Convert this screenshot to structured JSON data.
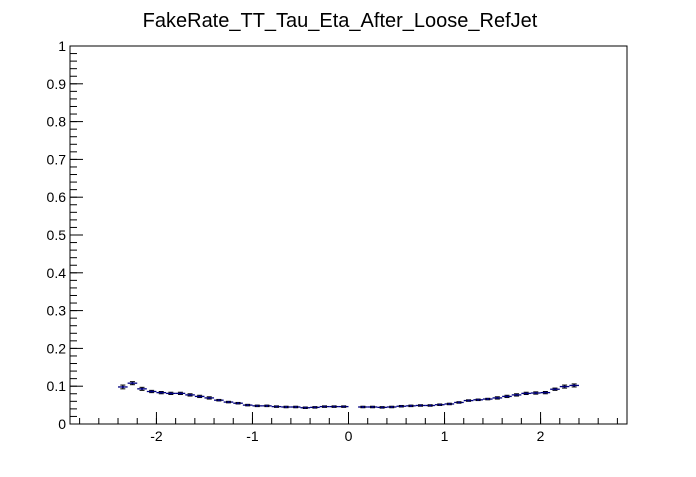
{
  "chart_data": {
    "type": "scatter",
    "title": "FakeRate_TT_Tau_Eta_After_Loose_RefJet",
    "xlabel": "",
    "ylabel": "",
    "xlim": [
      -2.9,
      2.9
    ],
    "ylim": [
      0,
      1
    ],
    "x_ticks": [
      -2,
      -1,
      0,
      1,
      2
    ],
    "y_ticks": [
      0,
      0.1,
      0.2,
      0.3,
      0.4,
      0.5,
      0.6,
      0.7,
      0.8,
      0.9,
      1
    ],
    "x_tick_labels": [
      "-2",
      "-1",
      "0",
      "1",
      "2"
    ],
    "y_tick_labels": [
      "0",
      "0.1",
      "0.2",
      "0.3",
      "0.4",
      "0.5",
      "0.6",
      "0.7",
      "0.8",
      "0.9",
      "1"
    ],
    "grid": false,
    "marker_color": "#000080",
    "bin_width": 0.1,
    "x": [
      -2.35,
      -2.25,
      -2.15,
      -2.05,
      -1.95,
      -1.85,
      -1.75,
      -1.65,
      -1.55,
      -1.45,
      -1.35,
      -1.25,
      -1.15,
      -1.05,
      -0.95,
      -0.85,
      -0.75,
      -0.65,
      -0.55,
      -0.45,
      -0.35,
      -0.25,
      -0.15,
      -0.05,
      0.15,
      0.25,
      0.35,
      0.45,
      0.55,
      0.65,
      0.75,
      0.85,
      0.95,
      1.05,
      1.15,
      1.25,
      1.35,
      1.45,
      1.55,
      1.65,
      1.75,
      1.85,
      1.95,
      2.05,
      2.15,
      2.25,
      2.35
    ],
    "y": [
      0.098,
      0.108,
      0.093,
      0.086,
      0.083,
      0.081,
      0.081,
      0.077,
      0.073,
      0.069,
      0.063,
      0.058,
      0.055,
      0.05,
      0.048,
      0.048,
      0.046,
      0.045,
      0.045,
      0.043,
      0.044,
      0.046,
      0.046,
      0.046,
      0.045,
      0.045,
      0.044,
      0.045,
      0.047,
      0.048,
      0.049,
      0.049,
      0.051,
      0.053,
      0.057,
      0.062,
      0.064,
      0.066,
      0.069,
      0.073,
      0.077,
      0.081,
      0.082,
      0.083,
      0.092,
      0.099,
      0.102
    ],
    "y_err": [
      0.005,
      0.004,
      0.004,
      0.003,
      0.003,
      0.003,
      0.003,
      0.003,
      0.003,
      0.003,
      0.002,
      0.002,
      0.002,
      0.002,
      0.002,
      0.002,
      0.002,
      0.002,
      0.002,
      0.002,
      0.002,
      0.002,
      0.002,
      0.002,
      0.002,
      0.002,
      0.002,
      0.002,
      0.002,
      0.002,
      0.002,
      0.002,
      0.002,
      0.002,
      0.002,
      0.002,
      0.002,
      0.002,
      0.003,
      0.003,
      0.003,
      0.003,
      0.003,
      0.003,
      0.003,
      0.004,
      0.004
    ]
  }
}
